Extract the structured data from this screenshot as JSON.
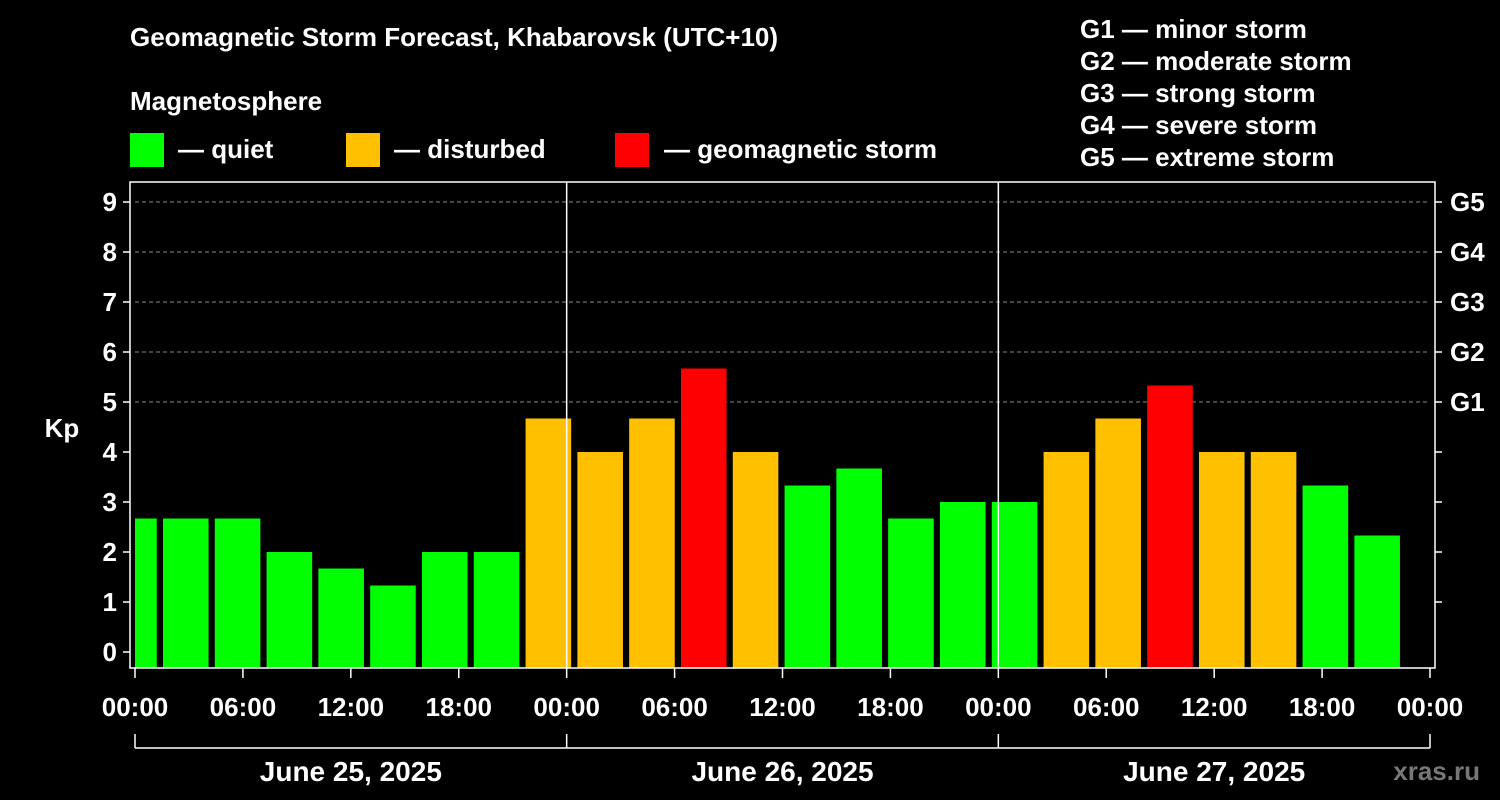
{
  "title": "Geomagnetic Storm Forecast, Khabarovsk (UTC+10)",
  "magnetosphere": {
    "heading": "Magnetosphere",
    "legend": [
      {
        "label": "— quiet",
        "color": "#00ff00"
      },
      {
        "label": "— disturbed",
        "color": "#ffc000"
      },
      {
        "label": "— geomagnetic storm",
        "color": "#ff0000"
      }
    ]
  },
  "storm_scale": [
    "G1 — minor storm",
    "G2 — moderate storm",
    "G3 — strong storm",
    "G4 — severe storm",
    "G5 — extreme storm"
  ],
  "watermark": "xras.ru",
  "chart_data": {
    "type": "bar",
    "ylabel": "Kp",
    "ylim": [
      0,
      9
    ],
    "yticks": [
      0,
      1,
      2,
      3,
      4,
      5,
      6,
      7,
      8,
      9
    ],
    "right_ticks": [
      {
        "value": 5,
        "label": "G1"
      },
      {
        "value": 6,
        "label": "G2"
      },
      {
        "value": 7,
        "label": "G3"
      },
      {
        "value": 8,
        "label": "G4"
      },
      {
        "value": 9,
        "label": "G5"
      }
    ],
    "x_tick_labels": [
      "00:00",
      "06:00",
      "12:00",
      "18:00",
      "00:00",
      "06:00",
      "12:00",
      "18:00",
      "00:00",
      "06:00",
      "12:00",
      "18:00",
      "00:00"
    ],
    "days": [
      "June 25, 2025",
      "June 26, 2025",
      "June 27, 2025"
    ],
    "interval_hours": 3,
    "values": [
      2.67,
      2.67,
      2.67,
      2.0,
      1.67,
      1.33,
      2.0,
      2.0,
      4.67,
      4.0,
      4.67,
      5.67,
      4.0,
      3.33,
      3.67,
      2.67,
      3.0,
      3.0,
      4.0,
      4.67,
      5.33,
      4.0,
      4.0,
      3.33,
      2.33
    ],
    "colors": {
      "quiet": "#00ff00",
      "disturbed": "#ffc000",
      "storm": "#ff0000"
    },
    "thresholds": {
      "disturbed": 4,
      "storm": 5
    },
    "grid": true
  }
}
